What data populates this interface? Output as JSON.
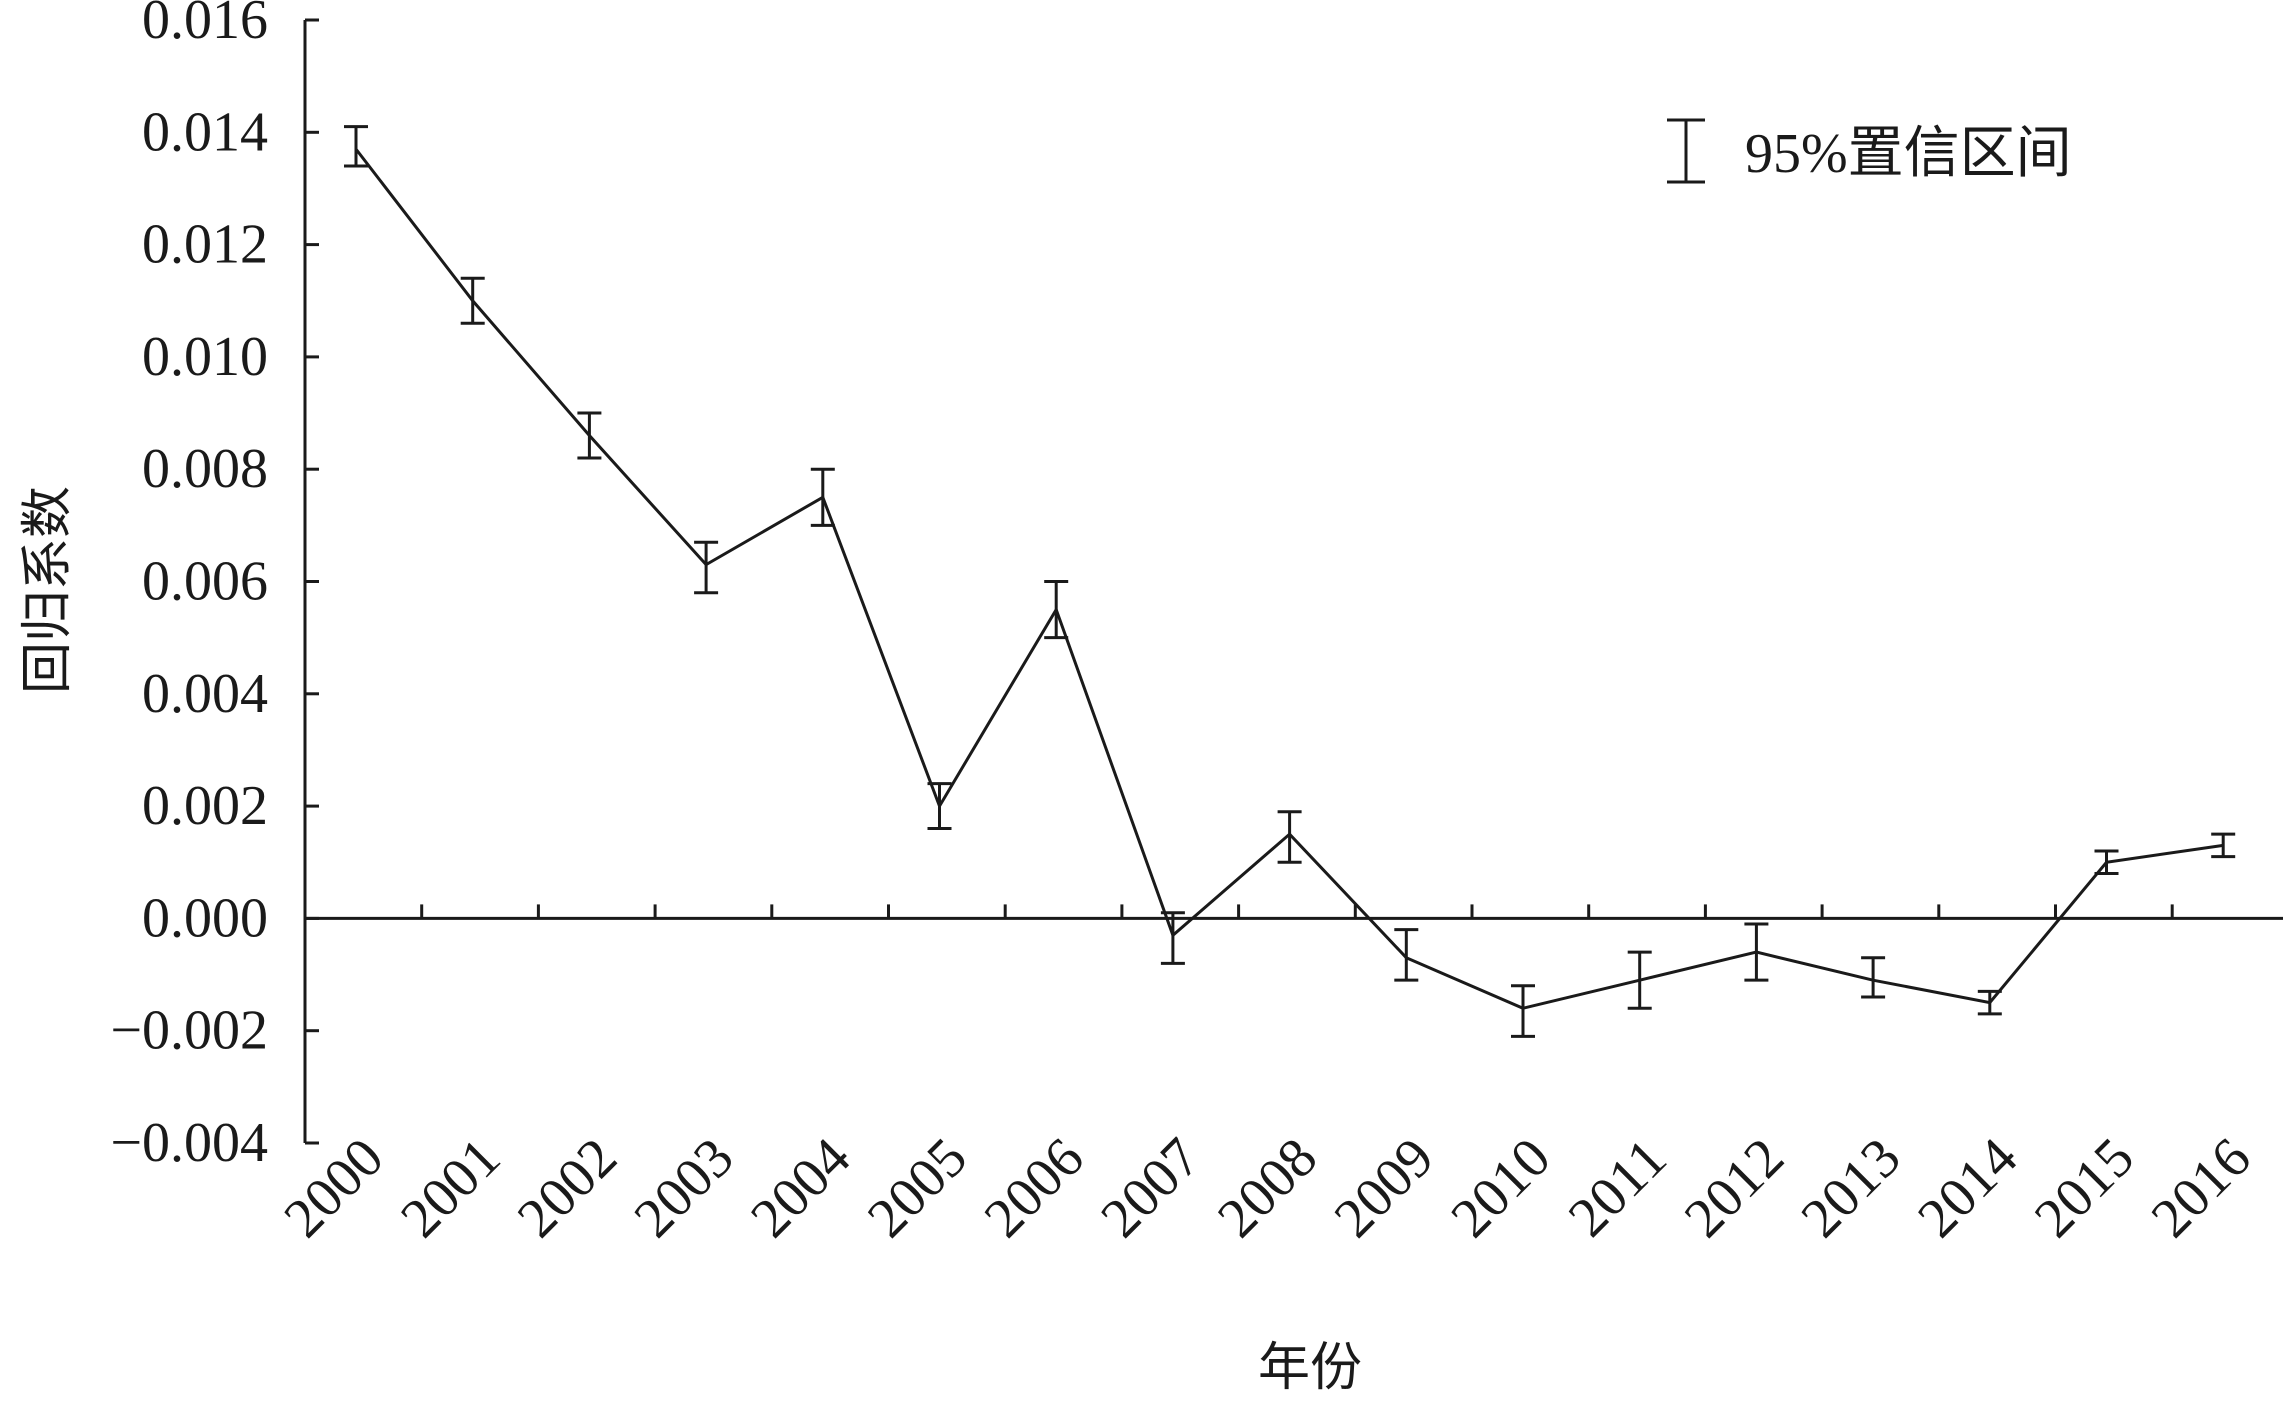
{
  "chart_data": {
    "type": "line",
    "xlabel": "年份",
    "ylabel": "回归系数",
    "ylim": [
      -0.004,
      0.016
    ],
    "yticks": [
      "0.016",
      "0.014",
      "0.012",
      "0.010",
      "0.008",
      "0.006",
      "0.004",
      "0.002",
      "0.000",
      "−0.002",
      "−0.004"
    ],
    "ytick_values": [
      0.016,
      0.014,
      0.012,
      0.01,
      0.008,
      0.006,
      0.004,
      0.002,
      0.0,
      -0.002,
      -0.004
    ],
    "categories": [
      "2000",
      "2001",
      "2002",
      "2003",
      "2004",
      "2005",
      "2006",
      "2007",
      "2008",
      "2009",
      "2010",
      "2011",
      "2012",
      "2013",
      "2014",
      "2015",
      "2016"
    ],
    "legend": {
      "label": "95%置信区间",
      "position": "top-right"
    },
    "grid": false,
    "series": [
      {
        "values": [
          0.0137,
          0.011,
          0.0086,
          0.0063,
          0.0075,
          0.002,
          0.0055,
          -0.0003,
          0.0015,
          -0.0007,
          -0.0016,
          -0.0011,
          -0.0006,
          -0.0011,
          -0.0015,
          0.001,
          0.0013
        ],
        "ci_lower": [
          0.0134,
          0.0106,
          0.0082,
          0.0058,
          0.007,
          0.0016,
          0.005,
          -0.0008,
          0.001,
          -0.0011,
          -0.0021,
          -0.0016,
          -0.0011,
          -0.0014,
          -0.0017,
          0.0008,
          0.0011
        ],
        "ci_upper": [
          0.0141,
          0.0114,
          0.009,
          0.0067,
          0.008,
          0.0024,
          0.006,
          0.0001,
          0.0019,
          -0.0002,
          -0.0012,
          -0.0006,
          -0.0001,
          -0.0007,
          -0.0013,
          0.0012,
          0.0015
        ]
      }
    ]
  }
}
